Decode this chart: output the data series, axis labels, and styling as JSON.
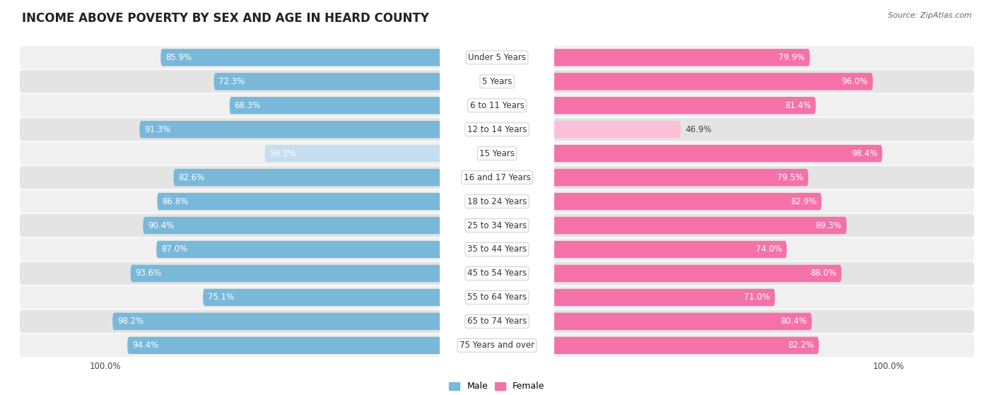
{
  "title": "INCOME ABOVE POVERTY BY SEX AND AGE IN HEARD COUNTY",
  "source": "Source: ZipAtlas.com",
  "categories": [
    "Under 5 Years",
    "5 Years",
    "6 to 11 Years",
    "12 to 14 Years",
    "15 Years",
    "16 and 17 Years",
    "18 to 24 Years",
    "25 to 34 Years",
    "35 to 44 Years",
    "45 to 54 Years",
    "55 to 64 Years",
    "65 to 74 Years",
    "75 Years and over"
  ],
  "male_values": [
    85.9,
    72.3,
    68.3,
    91.3,
    59.3,
    82.6,
    86.8,
    90.4,
    87.0,
    93.6,
    75.1,
    98.2,
    94.4
  ],
  "female_values": [
    79.9,
    96.0,
    81.4,
    46.9,
    98.4,
    79.5,
    82.9,
    89.3,
    74.0,
    88.0,
    71.0,
    80.4,
    82.2
  ],
  "male_color": "#7ab8d9",
  "male_color_light": "#c5dff0",
  "female_color": "#f472a8",
  "female_color_light": "#f9c0d8",
  "row_bg_odd": "#f0f0f0",
  "row_bg_even": "#e4e4e4",
  "title_fontsize": 12,
  "label_fontsize": 8.5,
  "value_fontsize": 8.5
}
